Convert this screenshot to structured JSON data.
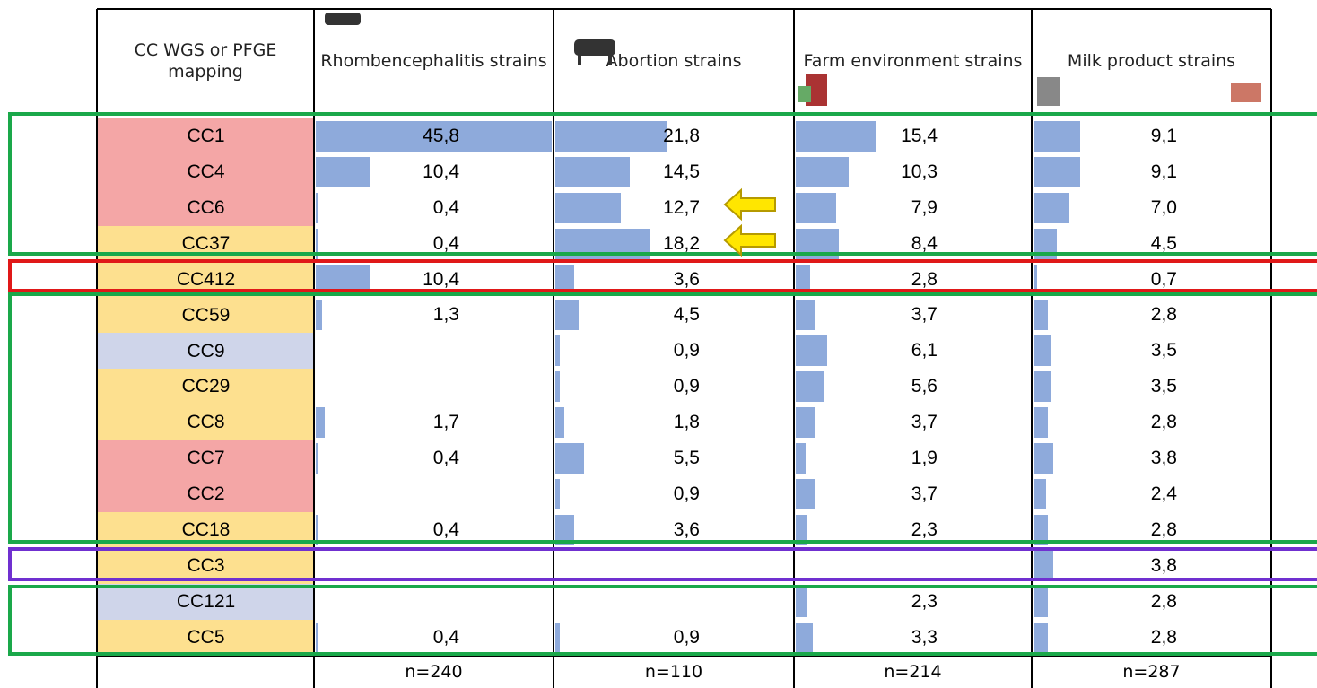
{
  "table": {
    "header": [
      "CC WGS or PFGE mapping",
      "Rhombencephalitis strains",
      "Abortion strains",
      "Farm environment strains",
      "Milk product strains"
    ],
    "rows": [
      {
        "cc": "CC1",
        "color": "#f4a6a6",
        "values": [
          "45,8",
          "21,8",
          "15,4",
          "9,1"
        ]
      },
      {
        "cc": "CC4",
        "color": "#f4a6a6",
        "values": [
          "10,4",
          "14,5",
          "10,3",
          "9,1"
        ]
      },
      {
        "cc": "CC6",
        "color": "#f4a6a6",
        "values": [
          "0,4",
          "12,7",
          "7,9",
          "7,0"
        ]
      },
      {
        "cc": "CC37",
        "color": "#fde08f",
        "values": [
          "0,4",
          "18,2",
          "8,4",
          "4,5"
        ]
      },
      {
        "cc": "CC412",
        "color": "#fde08f",
        "values": [
          "10,4",
          "3,6",
          "2,8",
          "0,7"
        ]
      },
      {
        "cc": "CC59",
        "color": "#fde08f",
        "values": [
          "1,3",
          "4,5",
          "3,7",
          "2,8"
        ]
      },
      {
        "cc": "CC9",
        "color": "#cfd5ea",
        "values": [
          null,
          "0,9",
          "6,1",
          "3,5"
        ]
      },
      {
        "cc": "CC29",
        "color": "#fde08f",
        "values": [
          null,
          "0,9",
          "5,6",
          "3,5"
        ]
      },
      {
        "cc": "CC8",
        "color": "#fde08f",
        "values": [
          "1,7",
          "1,8",
          "3,7",
          "2,8"
        ]
      },
      {
        "cc": "CC7",
        "color": "#f4a6a6",
        "values": [
          "0,4",
          "5,5",
          "1,9",
          "3,8"
        ]
      },
      {
        "cc": "CC2",
        "color": "#f4a6a6",
        "values": [
          null,
          "0,9",
          "3,7",
          "2,4"
        ]
      },
      {
        "cc": "CC18",
        "color": "#fde08f",
        "values": [
          "0,4",
          "3,6",
          "2,3",
          "2,8"
        ]
      },
      {
        "cc": "CC3",
        "color": "#fde08f",
        "values": [
          null,
          null,
          null,
          "3,8"
        ]
      },
      {
        "cc": "CC121",
        "color": "#cfd5ea",
        "values": [
          null,
          null,
          "2,3",
          "2,8"
        ]
      },
      {
        "cc": "CC5",
        "color": "#fde08f",
        "values": [
          "0,4",
          "0,9",
          "3,3",
          "2,8"
        ]
      }
    ],
    "footer": [
      "n=240",
      "n=110",
      "n=214",
      "n=287"
    ]
  }
}
